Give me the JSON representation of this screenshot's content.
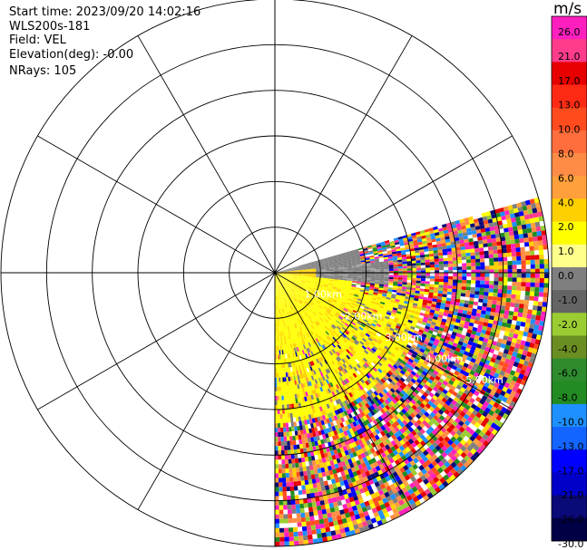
{
  "header": {
    "start_time": "Start time: 2023/09/20 14:02:16",
    "instrument": "WLS200s-181",
    "field": "Field: VEL",
    "elevation": "Elevation(deg): -0.00",
    "nrays": "NRays: 105"
  },
  "colorbar": {
    "unit": "m/s",
    "ticks": [
      "26.0",
      "21.0",
      "17.0",
      "13.0",
      "10.0",
      "8.0",
      "6.0",
      "4.0",
      "2.0",
      "1.0",
      "0.0",
      "-1.0",
      "-2.0",
      "-4.0",
      "-6.0",
      "-8.0",
      "-10.0",
      "-13.0",
      "-17.0",
      "-21.0",
      "-26.0",
      "-30.0"
    ],
    "colors": [
      "#ff1fbf",
      "#ff3c8c",
      "#e60000",
      "#ff2a14",
      "#ff4b1e",
      "#ff6e3c",
      "#ff8c46",
      "#ffa03c",
      "#ffd000",
      "#ffff00",
      "#ffff8c",
      "#7f7f7f",
      "#646464",
      "#9acd32",
      "#6b8e23",
      "#2e8b2e",
      "#228b22",
      "#1e90ff",
      "#1464ff",
      "#0000ff",
      "#0000c8",
      "#0a0a78",
      "#000046"
    ]
  },
  "chart_data": {
    "type": "ppi",
    "field": "VEL",
    "units": "m/s",
    "vmin": -30.0,
    "vmax": 30.0,
    "range_rings_km": [
      1.0,
      2.0,
      3.0,
      4.0,
      5.0,
      6.0
    ],
    "range_ring_labels": [
      "1.00km",
      "2.00km",
      "3.00km",
      "4.00km",
      "5.00km"
    ],
    "azimuth_spokes_deg": [
      0,
      30,
      60,
      90,
      120,
      150,
      180,
      210,
      240,
      270,
      300,
      330
    ],
    "scan_sector_deg": [
      74,
      180
    ],
    "max_range_km": 6.0
  }
}
